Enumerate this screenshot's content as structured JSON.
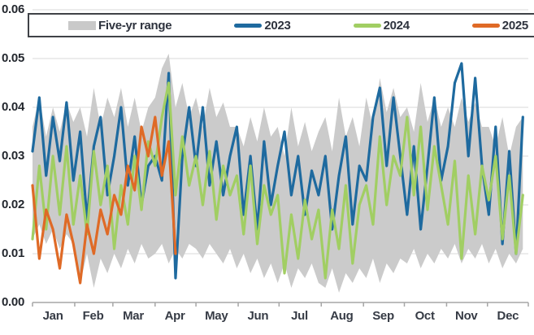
{
  "page": {
    "background": "#ffffff"
  },
  "legend": {
    "items": [
      {
        "label": "Five-yr range",
        "color": "#c9c9c9",
        "swatch": "band"
      },
      {
        "label": "2023",
        "color": "#1e6a9f",
        "swatch": "line"
      },
      {
        "label": "2024",
        "color": "#a1ce63",
        "swatch": "line"
      },
      {
        "label": "2025",
        "color": "#df6a26",
        "swatch": "line"
      }
    ],
    "border_color": "#3f4247"
  },
  "chart_data": {
    "type": "line",
    "title": "",
    "xlabel": "",
    "ylabel": "",
    "ylim": [
      0,
      0.06
    ],
    "grid": "horizontal",
    "gridline_color": "#d9d9d9",
    "axis_color": "#a6a6a6",
    "legend_position": "top",
    "y_ticks": [
      0,
      0.01,
      0.02,
      0.03,
      0.04,
      0.05,
      0.06
    ],
    "y_tick_labels": [
      "0.00",
      "0.01",
      "0.02",
      "0.03",
      "0.04",
      "0.05",
      "0.06"
    ],
    "x_tick_labels": [
      "Jan",
      "Feb",
      "Mar",
      "Apr",
      "May",
      "Jun",
      "Jul",
      "Aug",
      "Sep",
      "Oct",
      "Nov",
      "Dec"
    ],
    "month_start_days": [
      1,
      32,
      60,
      91,
      121,
      152,
      182,
      213,
      244,
      274,
      305,
      335
    ],
    "x_days_total": 365,
    "sample_start_day": 1,
    "sample_step_days": 5,
    "band": {
      "name": "Five-yr range",
      "color": "#cbcbcb",
      "low": [
        0.013,
        0.016,
        0.012,
        0.015,
        0.011,
        0.014,
        0.012,
        0.004,
        0.01,
        0.003,
        0.009,
        0.006,
        0.01,
        0.007,
        0.011,
        0.008,
        0.012,
        0.009,
        0.01,
        0.012,
        0.008,
        0.011,
        0.009,
        0.012,
        0.011,
        0.009,
        0.012,
        0.01,
        0.008,
        0.011,
        0.007,
        0.01,
        0.006,
        0.009,
        0.005,
        0.008,
        0.004,
        0.008,
        0.003,
        0.007,
        0.005,
        0.008,
        0.004,
        0.003,
        0.007,
        0.002,
        0.006,
        0.004,
        0.007,
        0.005,
        0.009,
        0.004,
        0.008,
        0.006,
        0.009,
        0.008,
        0.011,
        0.007,
        0.01,
        0.008,
        0.011,
        0.009,
        0.012,
        0.008,
        0.011,
        0.009,
        0.012,
        0.008,
        0.011,
        0.007,
        0.01,
        0.008,
        0.011
      ],
      "high": [
        0.036,
        0.042,
        0.034,
        0.04,
        0.035,
        0.041,
        0.037,
        0.04,
        0.034,
        0.044,
        0.036,
        0.042,
        0.038,
        0.044,
        0.036,
        0.042,
        0.035,
        0.04,
        0.042,
        0.048,
        0.051,
        0.04,
        0.045,
        0.038,
        0.042,
        0.036,
        0.044,
        0.038,
        0.041,
        0.036,
        0.036,
        0.032,
        0.038,
        0.033,
        0.04,
        0.034,
        0.036,
        0.03,
        0.04,
        0.032,
        0.037,
        0.031,
        0.035,
        0.038,
        0.031,
        0.042,
        0.034,
        0.038,
        0.032,
        0.042,
        0.036,
        0.046,
        0.039,
        0.044,
        0.038,
        0.04,
        0.035,
        0.045,
        0.037,
        0.042,
        0.036,
        0.04,
        0.036,
        0.042,
        0.037,
        0.041,
        0.036,
        0.036,
        0.032,
        0.038,
        0.03,
        0.036,
        0.038
      ]
    },
    "series": [
      {
        "name": "2023",
        "color": "#1e6a9f",
        "values": [
          0.031,
          0.042,
          0.026,
          0.038,
          0.029,
          0.041,
          0.025,
          0.035,
          0.017,
          0.032,
          0.038,
          0.022,
          0.03,
          0.04,
          0.024,
          0.034,
          0.02,
          0.028,
          0.03,
          0.025,
          0.047,
          0.005,
          0.03,
          0.04,
          0.028,
          0.04,
          0.024,
          0.033,
          0.022,
          0.03,
          0.036,
          0.018,
          0.03,
          0.015,
          0.033,
          0.02,
          0.028,
          0.035,
          0.022,
          0.03,
          0.018,
          0.027,
          0.022,
          0.03,
          0.015,
          0.026,
          0.034,
          0.016,
          0.028,
          0.025,
          0.038,
          0.044,
          0.028,
          0.042,
          0.03,
          0.018,
          0.032,
          0.015,
          0.028,
          0.042,
          0.025,
          0.032,
          0.045,
          0.049,
          0.03,
          0.046,
          0.028,
          0.018,
          0.036,
          0.012,
          0.031,
          0.01,
          0.038
        ]
      },
      {
        "name": "2024",
        "color": "#a1ce63",
        "values": [
          0.013,
          0.028,
          0.015,
          0.03,
          0.018,
          0.032,
          0.016,
          0.026,
          0.014,
          0.031,
          0.02,
          0.028,
          0.011,
          0.024,
          0.016,
          0.03,
          0.019,
          0.033,
          0.028,
          0.038,
          0.045,
          0.022,
          0.034,
          0.024,
          0.03,
          0.02,
          0.031,
          0.017,
          0.028,
          0.022,
          0.026,
          0.014,
          0.028,
          0.012,
          0.024,
          0.018,
          0.022,
          0.006,
          0.018,
          0.009,
          0.021,
          0.013,
          0.019,
          0.005,
          0.019,
          0.011,
          0.024,
          0.008,
          0.02,
          0.024,
          0.016,
          0.034,
          0.02,
          0.03,
          0.026,
          0.038,
          0.022,
          0.036,
          0.019,
          0.032,
          0.024,
          0.016,
          0.029,
          0.009,
          0.026,
          0.014,
          0.028,
          0.021,
          0.03,
          0.013,
          0.026,
          0.01,
          0.022
        ]
      },
      {
        "name": "2025",
        "color": "#df6a26",
        "values": [
          0.024,
          0.009,
          0.019,
          0.015,
          0.007,
          0.018,
          0.012,
          0.004,
          0.016,
          0.01,
          0.019,
          0.014,
          0.022,
          0.018,
          0.028,
          0.023,
          0.036,
          0.03,
          0.038,
          0.026,
          0.033,
          0.01
        ]
      }
    ]
  }
}
